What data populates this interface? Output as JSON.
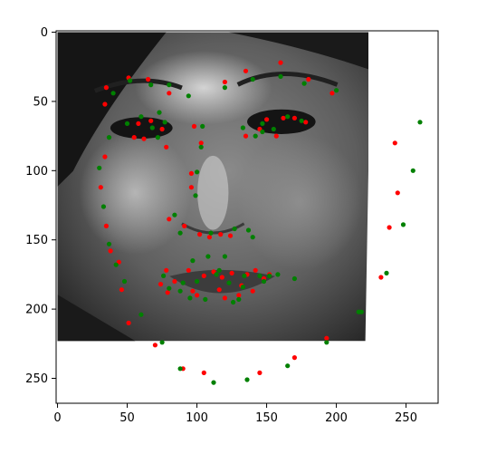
{
  "chart_data": {
    "type": "scatter",
    "title": "",
    "xlabel": "",
    "ylabel": "",
    "xlim": [
      -1,
      273
    ],
    "ylim": [
      268,
      -1
    ],
    "y_inverted": true,
    "grid": false,
    "legend": "none",
    "x_ticks": [
      0,
      50,
      100,
      150,
      200,
      250
    ],
    "y_ticks": [
      0,
      50,
      100,
      150,
      200,
      250
    ],
    "image": {
      "description_icon": "grayscale-face-photo-icon",
      "extent_x": [
        0,
        223
      ],
      "extent_y": [
        0,
        223
      ],
      "visible_region": "rotated-face-crop-with-white-corner"
    },
    "series": [
      {
        "color": "#ff0000",
        "points": [
          [
            35,
            40
          ],
          [
            34,
            52
          ],
          [
            34,
            90
          ],
          [
            31,
            112
          ],
          [
            35,
            140
          ],
          [
            38,
            158
          ],
          [
            44,
            166
          ],
          [
            46,
            186
          ],
          [
            51,
            210
          ],
          [
            70,
            226
          ],
          [
            90,
            243
          ],
          [
            105,
            246
          ],
          [
            145,
            246
          ],
          [
            170,
            235
          ],
          [
            193,
            221
          ],
          [
            232,
            177
          ],
          [
            238,
            141
          ],
          [
            242,
            80
          ],
          [
            244,
            116
          ],
          [
            51,
            33
          ],
          [
            65,
            34
          ],
          [
            80,
            44
          ],
          [
            120,
            36
          ],
          [
            135,
            28
          ],
          [
            160,
            22
          ],
          [
            180,
            34
          ],
          [
            197,
            44
          ],
          [
            55,
            76
          ],
          [
            62,
            77
          ],
          [
            58,
            66
          ],
          [
            67,
            64
          ],
          [
            75,
            70
          ],
          [
            78,
            83
          ],
          [
            145,
            70
          ],
          [
            150,
            63
          ],
          [
            157,
            75
          ],
          [
            162,
            62
          ],
          [
            170,
            62
          ],
          [
            178,
            65
          ],
          [
            135,
            75
          ],
          [
            98,
            68
          ],
          [
            103,
            80
          ],
          [
            96,
            102
          ],
          [
            96,
            112
          ],
          [
            80,
            135
          ],
          [
            91,
            140
          ],
          [
            102,
            146
          ],
          [
            109,
            148
          ],
          [
            117,
            146
          ],
          [
            124,
            147
          ],
          [
            74,
            182
          ],
          [
            79,
            188
          ],
          [
            84,
            180
          ],
          [
            94,
            172
          ],
          [
            97,
            187
          ],
          [
            100,
            190
          ],
          [
            105,
            176
          ],
          [
            112,
            173
          ],
          [
            118,
            177
          ],
          [
            116,
            186
          ],
          [
            120,
            192
          ],
          [
            130,
            190
          ],
          [
            132,
            183
          ],
          [
            125,
            174
          ],
          [
            136,
            175
          ],
          [
            142,
            172
          ],
          [
            148,
            178
          ],
          [
            152,
            175
          ],
          [
            140,
            187
          ],
          [
            78,
            172
          ]
        ]
      },
      {
        "color": "#008000",
        "points": [
          [
            40,
            44
          ],
          [
            37,
            76
          ],
          [
            30,
            98
          ],
          [
            33,
            126
          ],
          [
            37,
            153
          ],
          [
            42,
            168
          ],
          [
            48,
            180
          ],
          [
            60,
            204
          ],
          [
            75,
            224
          ],
          [
            88,
            243
          ],
          [
            112,
            253
          ],
          [
            136,
            251
          ],
          [
            165,
            241
          ],
          [
            193,
            224
          ],
          [
            218,
            202
          ],
          [
            216,
            202
          ],
          [
            236,
            174
          ],
          [
            248,
            139
          ],
          [
            255,
            100
          ],
          [
            260,
            65
          ],
          [
            52,
            35
          ],
          [
            67,
            38
          ],
          [
            80,
            38
          ],
          [
            94,
            46
          ],
          [
            120,
            40
          ],
          [
            140,
            34
          ],
          [
            160,
            32
          ],
          [
            177,
            37
          ],
          [
            200,
            42
          ],
          [
            50,
            66
          ],
          [
            60,
            61
          ],
          [
            68,
            69
          ],
          [
            73,
            58
          ],
          [
            77,
            65
          ],
          [
            72,
            76
          ],
          [
            103,
            83
          ],
          [
            104,
            68
          ],
          [
            133,
            69
          ],
          [
            142,
            75
          ],
          [
            147,
            66
          ],
          [
            155,
            70
          ],
          [
            165,
            61
          ],
          [
            175,
            64
          ],
          [
            147,
            72
          ],
          [
            100,
            101
          ],
          [
            99,
            118
          ],
          [
            84,
            132
          ],
          [
            88,
            145
          ],
          [
            110,
            145
          ],
          [
            127,
            142
          ],
          [
            137,
            143
          ],
          [
            140,
            148
          ],
          [
            76,
            176
          ],
          [
            80,
            185
          ],
          [
            88,
            187
          ],
          [
            90,
            181
          ],
          [
            97,
            165
          ],
          [
            95,
            192
          ],
          [
            100,
            180
          ],
          [
            106,
            193
          ],
          [
            108,
            162
          ],
          [
            114,
            175
          ],
          [
            120,
            162
          ],
          [
            116,
            172
          ],
          [
            123,
            181
          ],
          [
            126,
            195
          ],
          [
            130,
            193
          ],
          [
            134,
            176
          ],
          [
            145,
            176
          ],
          [
            148,
            180
          ],
          [
            133,
            184
          ],
          [
            152,
            176
          ],
          [
            158,
            175
          ],
          [
            170,
            178
          ]
        ]
      }
    ]
  }
}
